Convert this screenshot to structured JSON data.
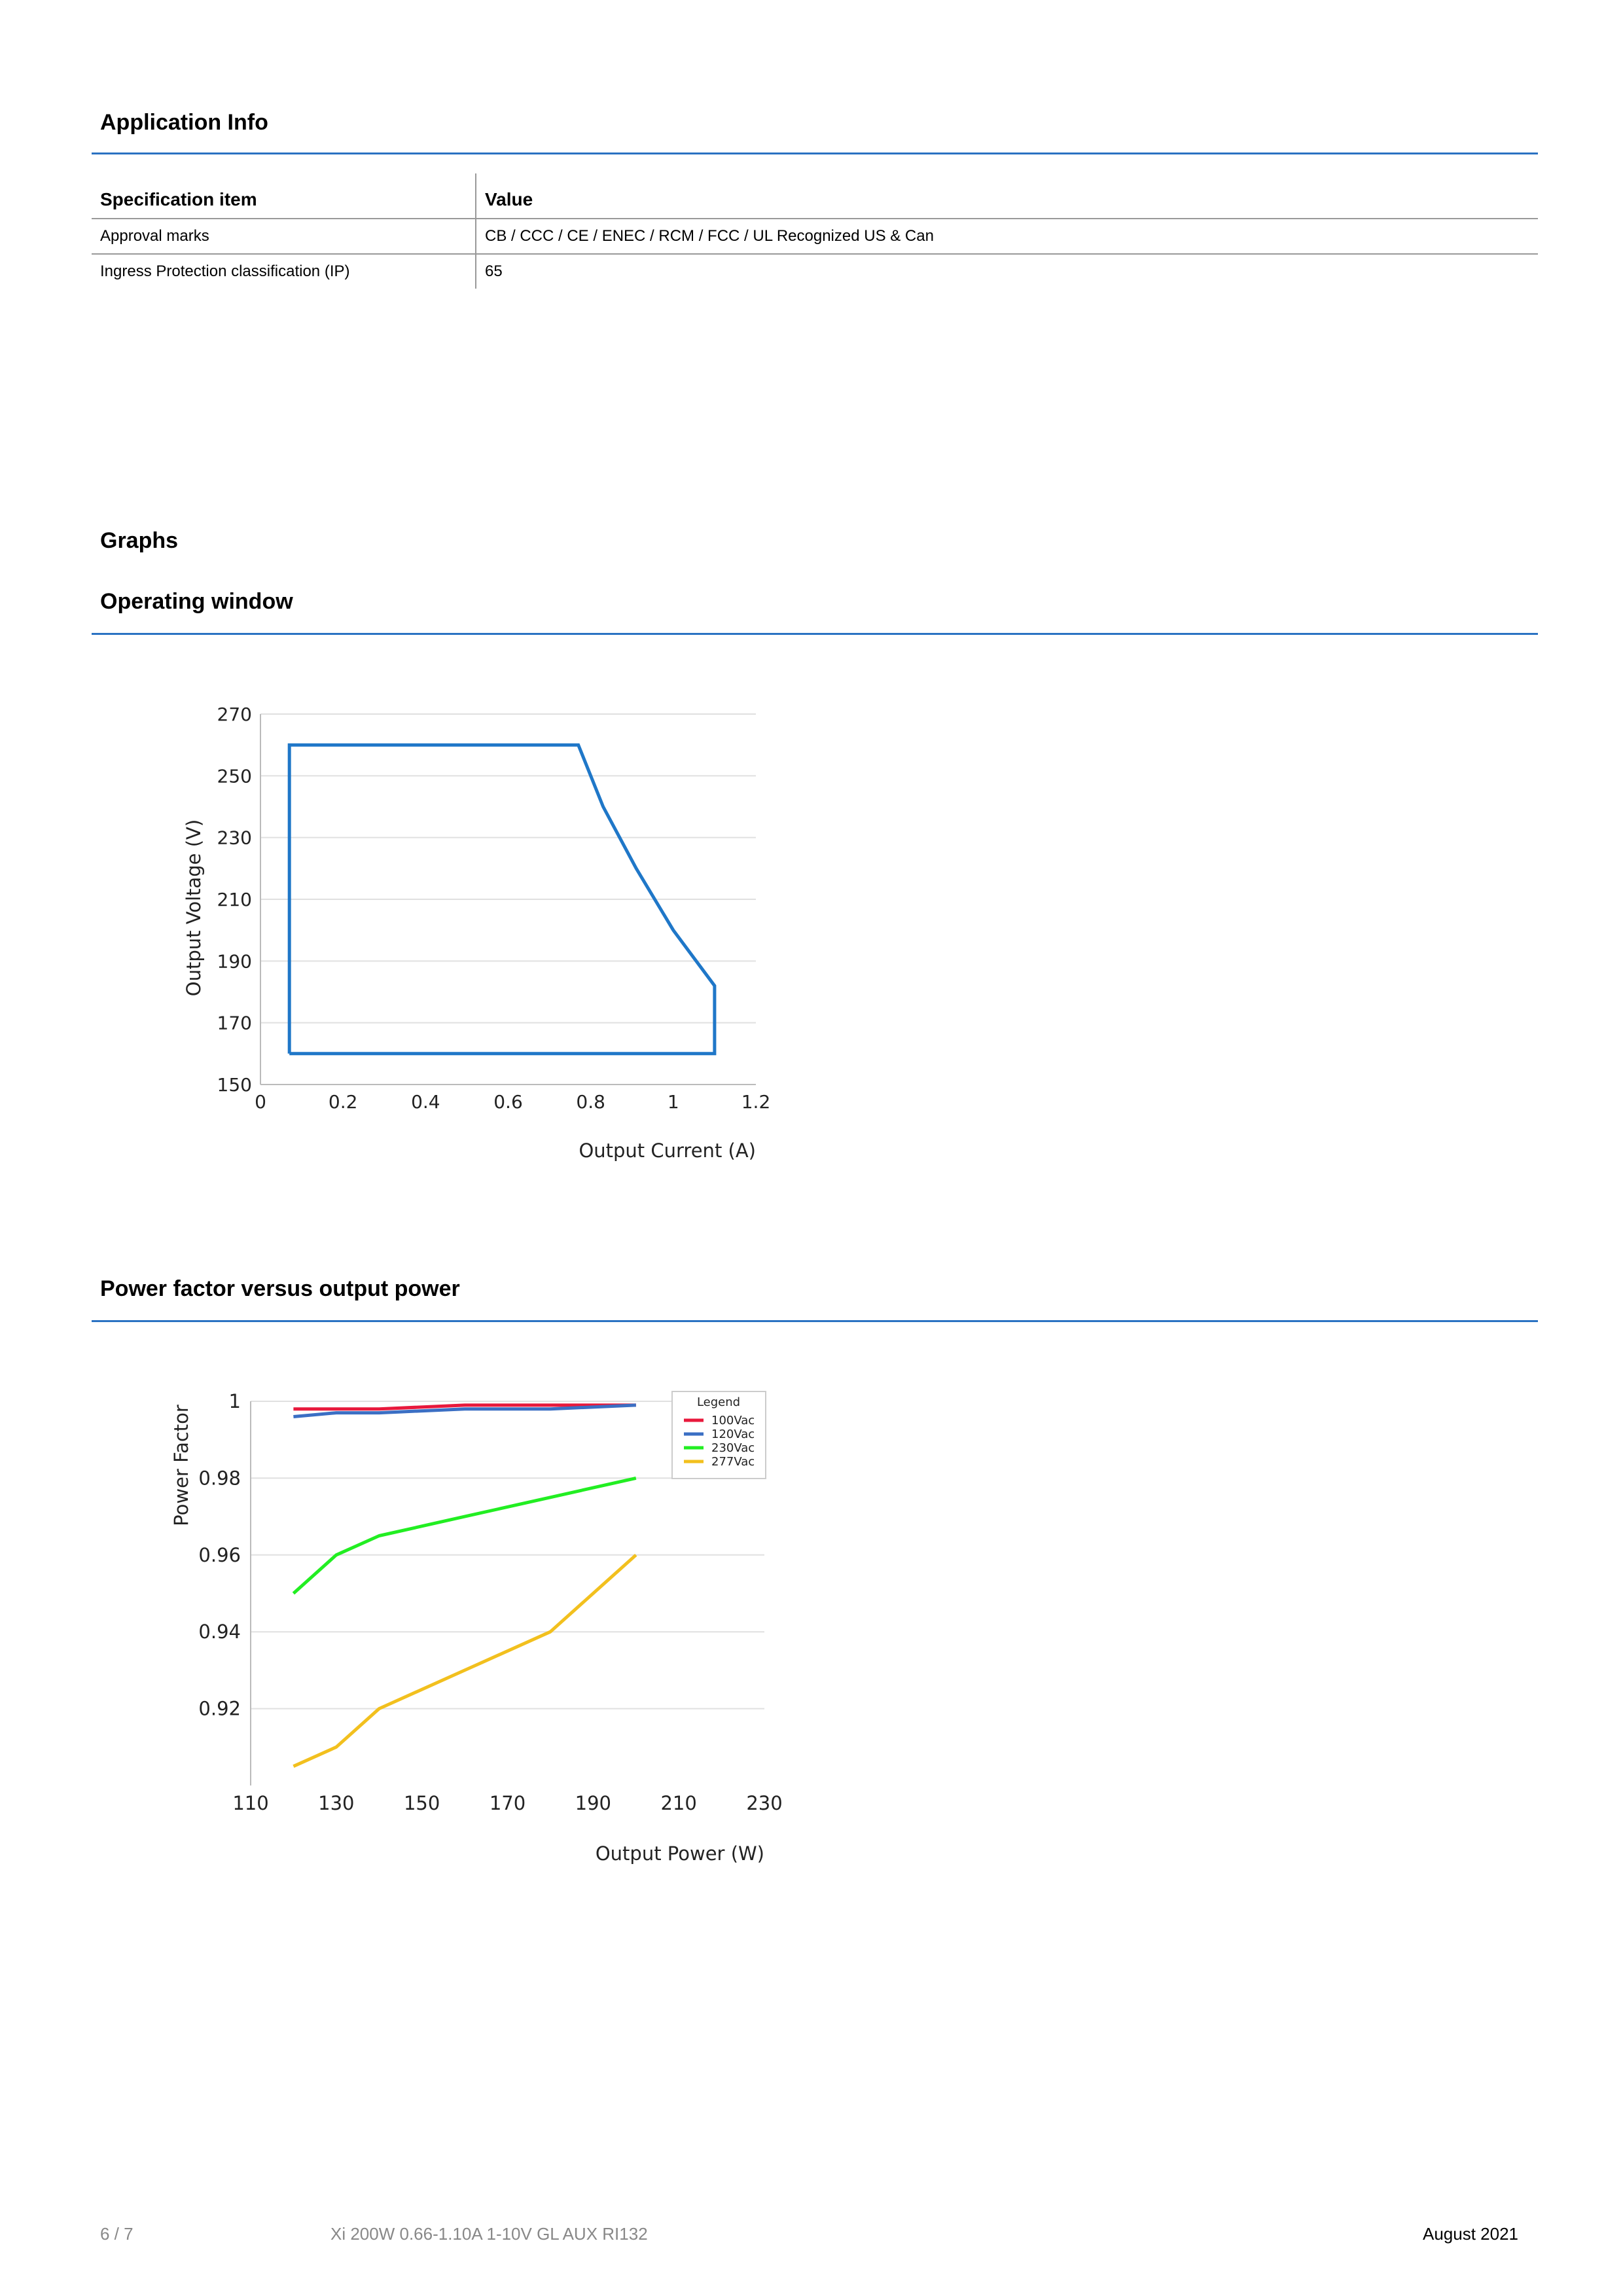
{
  "application_info": {
    "title": "Application Info",
    "table": {
      "headers": [
        "Specification item",
        "Value"
      ],
      "rows": [
        [
          "Approval marks",
          "CB / CCC / CE / ENEC / RCM / FCC / UL Recognized US & Can"
        ],
        [
          "Ingress Protection classification (IP)",
          "65"
        ]
      ]
    }
  },
  "graphs": {
    "title": "Graphs",
    "operating_window_title": "Operating window",
    "power_factor_title": "Power factor versus output power"
  },
  "chart_data": [
    {
      "type": "line",
      "title": "",
      "xlabel": "Output Current (A)",
      "ylabel": "Output Voltage (V)",
      "xlim": [
        0,
        1.2
      ],
      "ylim": [
        150,
        270
      ],
      "x_ticks": [
        "0",
        "0.2",
        "0.4",
        "0.6",
        "0.8",
        "1",
        "1.2"
      ],
      "y_ticks": [
        "150",
        "170",
        "190",
        "210",
        "230",
        "250",
        "270"
      ],
      "grid": true,
      "series": [
        {
          "color": "#1f77c8",
          "points": [
            [
              0.07,
              160
            ],
            [
              0.07,
              260
            ],
            [
              0.77,
              260
            ],
            [
              0.83,
              240
            ],
            [
              0.91,
              220
            ],
            [
              1.0,
              200
            ],
            [
              1.1,
              182
            ],
            [
              1.1,
              160
            ],
            [
              0.07,
              160
            ]
          ]
        }
      ]
    },
    {
      "type": "line",
      "title": "",
      "xlabel": "Output Power (W)",
      "ylabel": "Power Factor",
      "xlim": [
        110,
        230
      ],
      "ylim": [
        0.9,
        1.0
      ],
      "x_ticks": [
        "110",
        "130",
        "150",
        "170",
        "190",
        "210",
        "230"
      ],
      "y_ticks": [
        "0.92",
        "0.94",
        "0.96",
        "0.98",
        "1"
      ],
      "grid": true,
      "legend_title": "Legend",
      "legend_position": "top-right",
      "series": [
        {
          "name": "100Vac",
          "color": "#e8193c",
          "x": [
            120,
            130,
            140,
            160,
            180,
            200
          ],
          "y": [
            0.998,
            0.998,
            0.998,
            0.999,
            0.999,
            0.999
          ]
        },
        {
          "name": "120Vac",
          "color": "#3b6fc4",
          "x": [
            120,
            130,
            140,
            160,
            180,
            200
          ],
          "y": [
            0.996,
            0.997,
            0.997,
            0.998,
            0.998,
            0.999
          ]
        },
        {
          "name": "230Vac",
          "color": "#22ee22",
          "x": [
            120,
            130,
            140,
            160,
            180,
            200
          ],
          "y": [
            0.95,
            0.96,
            0.965,
            0.97,
            0.975,
            0.98
          ]
        },
        {
          "name": "277Vac",
          "color": "#f2c01e",
          "x": [
            120,
            130,
            140,
            160,
            180,
            200
          ],
          "y": [
            0.905,
            0.91,
            0.92,
            0.93,
            0.94,
            0.96
          ]
        }
      ]
    }
  ],
  "footer": {
    "page": "6 / 7",
    "product": "Xi 200W 0.66-1.10A 1-10V GL AUX RI132",
    "date": "August 2021"
  }
}
